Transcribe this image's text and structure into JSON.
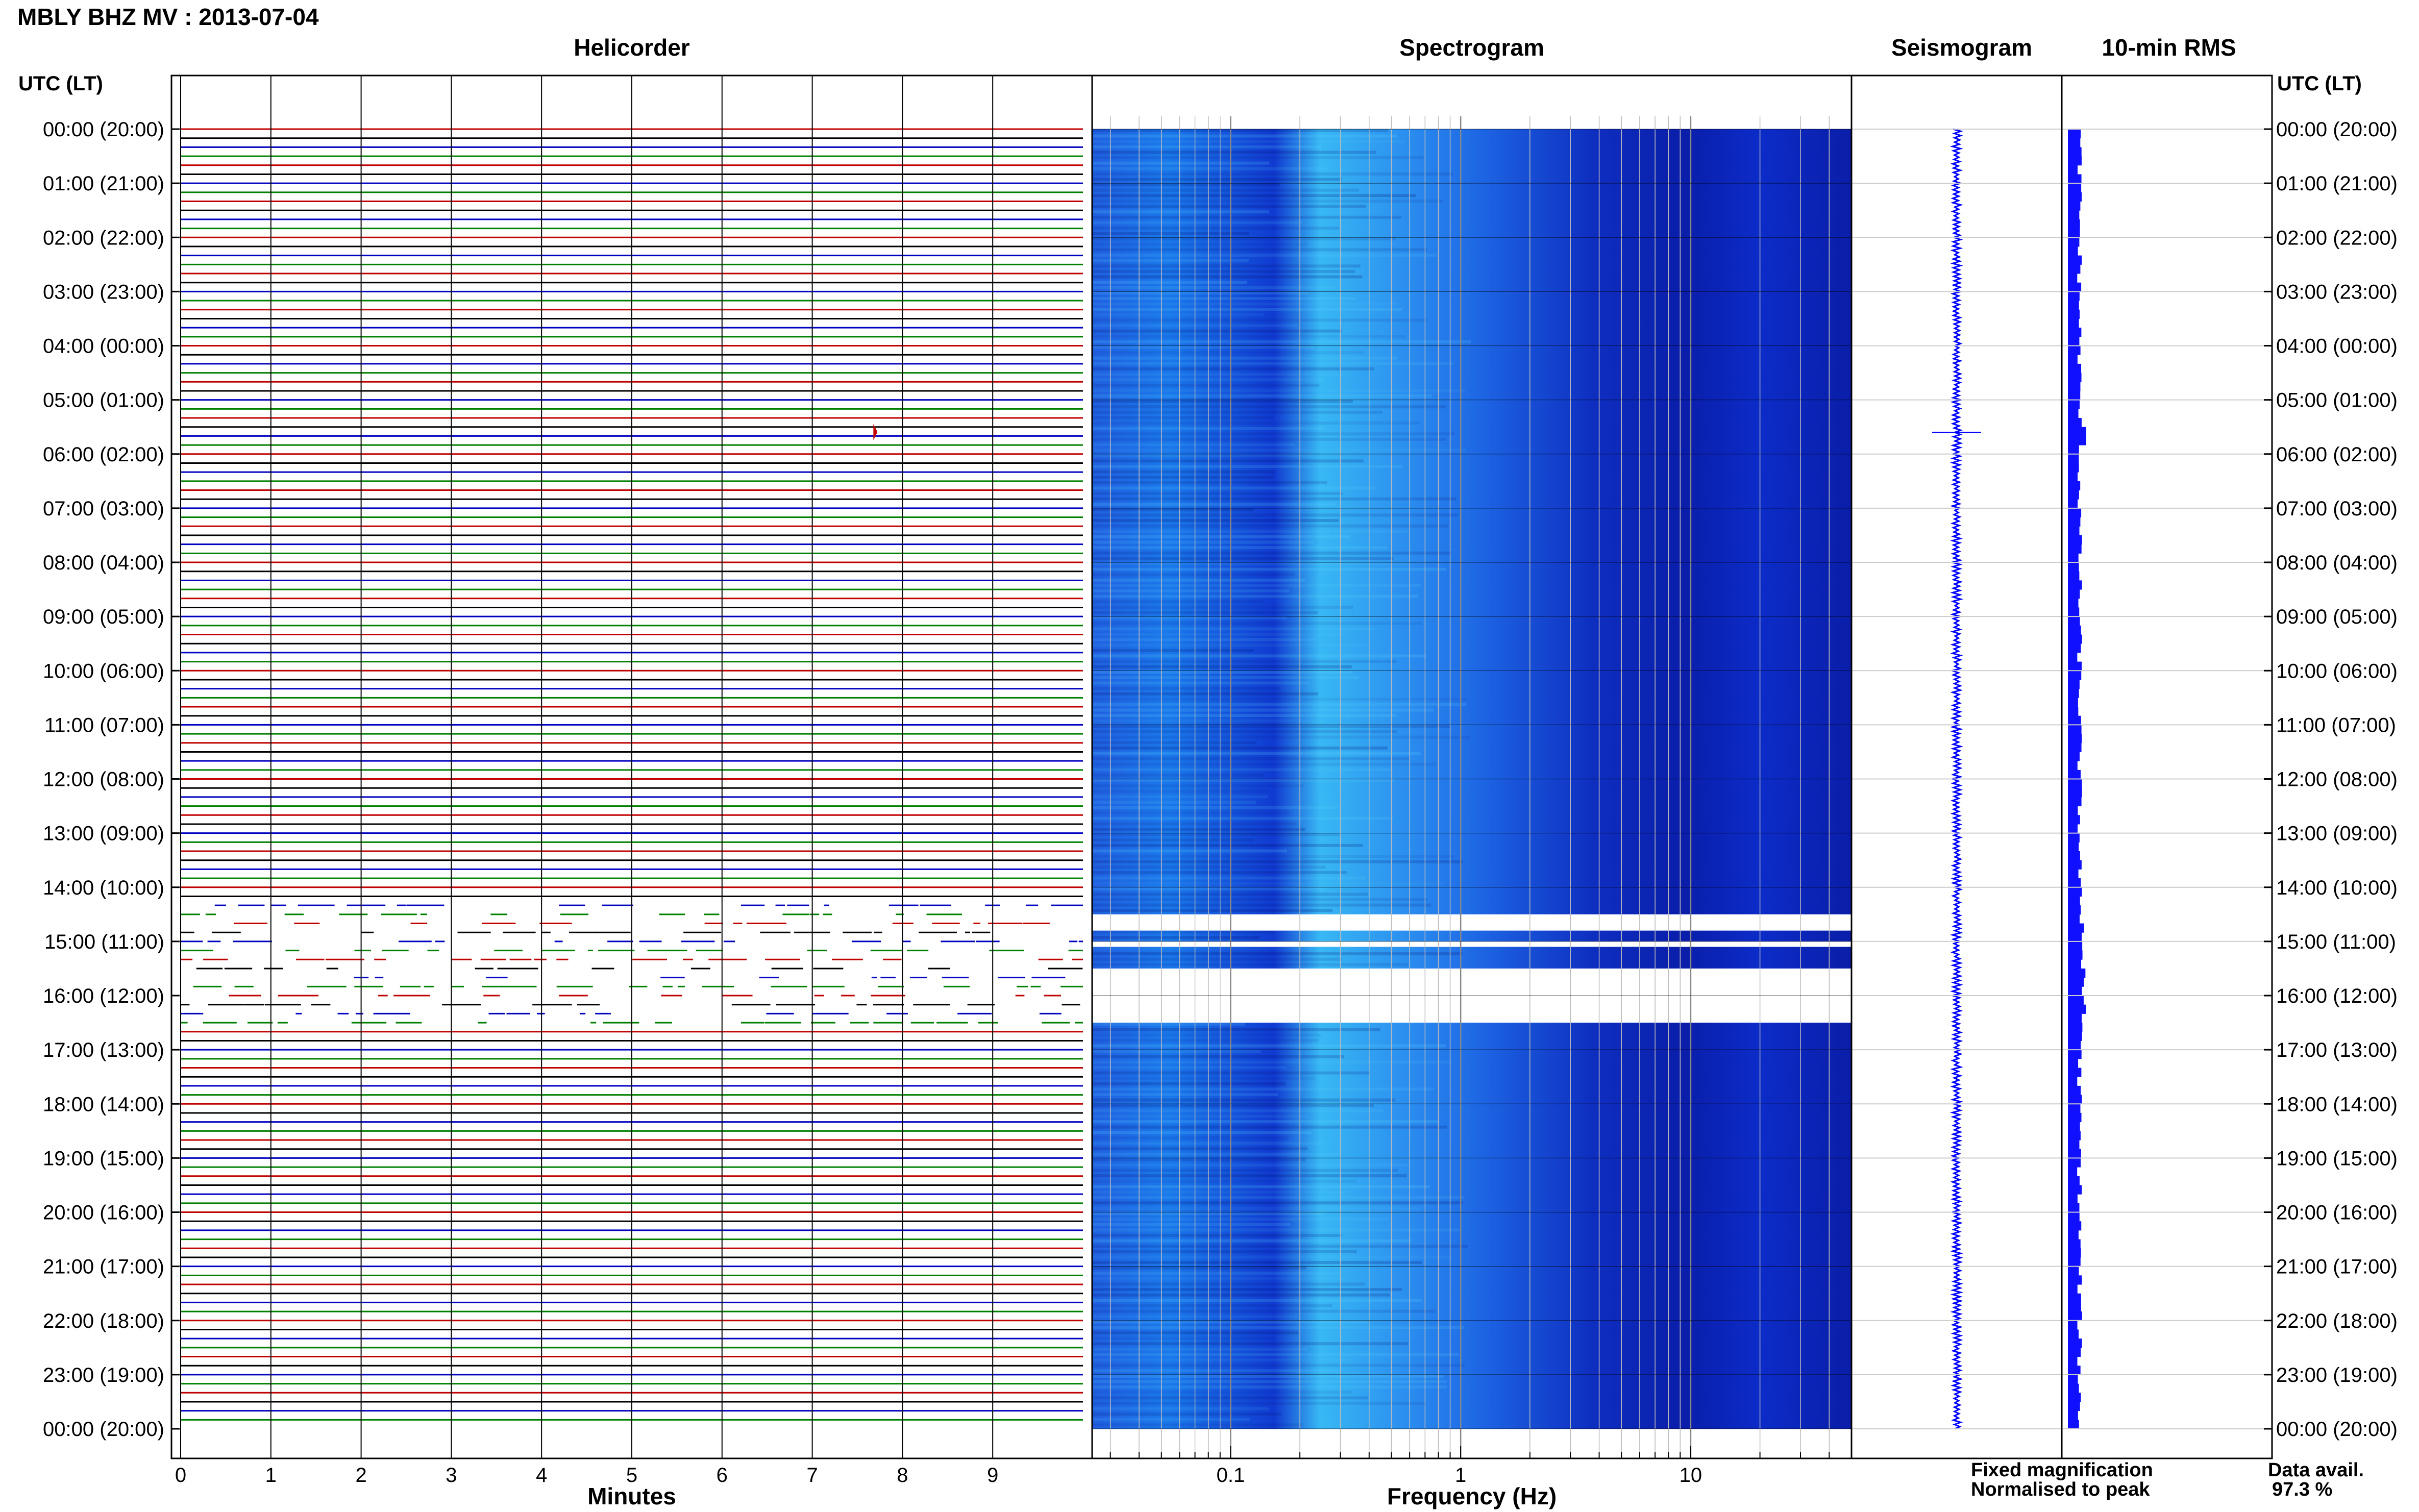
{
  "header": {
    "title": "MBLY BHZ MV : 2013-07-04"
  },
  "panels": {
    "helicorder": "Helicorder",
    "spectrogram": "Spectrogram",
    "seismogram": "Seismogram",
    "rms": "10-min RMS"
  },
  "time_axis": {
    "label_left": "UTC (LT)",
    "label_right": "UTC (LT)",
    "ticks": [
      "00:00 (20:00)",
      "01:00 (21:00)",
      "02:00 (22:00)",
      "03:00 (23:00)",
      "04:00 (00:00)",
      "05:00 (01:00)",
      "06:00 (02:00)",
      "07:00 (03:00)",
      "08:00 (04:00)",
      "09:00 (05:00)",
      "10:00 (06:00)",
      "11:00 (07:00)",
      "12:00 (08:00)",
      "13:00 (09:00)",
      "14:00 (10:00)",
      "15:00 (11:00)",
      "16:00 (12:00)",
      "17:00 (13:00)",
      "18:00 (14:00)",
      "19:00 (15:00)",
      "20:00 (16:00)",
      "21:00 (17:00)",
      "22:00 (18:00)",
      "23:00 (19:00)",
      "00:00 (20:00)"
    ]
  },
  "chart_data": [
    {
      "type": "line",
      "name": "helicorder",
      "title": "Helicorder",
      "xlabel": "Minutes",
      "x_ticks": [
        0,
        1,
        2,
        3,
        4,
        5,
        6,
        7,
        8,
        9
      ],
      "xlim": [
        0,
        10
      ],
      "trace_interval_minutes": 10,
      "trace_colors": [
        "#c00000",
        "#000000",
        "#0000c0",
        "#008000"
      ],
      "gap_utc_hours": [
        14.2,
        16.5
      ],
      "event_utc_hour": 5.5,
      "event_minute": 7.7
    },
    {
      "type": "heatmap",
      "name": "spectrogram",
      "title": "Spectrogram",
      "xlabel": "Frequency (Hz)",
      "x_scale": "log",
      "xlim": [
        0.025,
        50
      ],
      "x_tick_labels": [
        "0.1",
        "1",
        "10"
      ],
      "x_ticks": [
        0.1,
        1,
        10
      ],
      "gaps_utc_hours": [
        [
          14.5,
          14.8
        ],
        [
          15.0,
          15.1
        ],
        [
          15.5,
          16.5
        ]
      ],
      "colormap": [
        "#0a1aa0",
        "#1040e0",
        "#2a7af0",
        "#40c0f8"
      ]
    },
    {
      "type": "line",
      "name": "seismogram",
      "title": "Seismogram",
      "spike_utc_hour": 5.6
    },
    {
      "type": "area",
      "name": "rms",
      "title": "10-min RMS",
      "interval_minutes": 10
    }
  ],
  "legend": {
    "fixed": "Fixed magnification",
    "normalised": "Normalised to peak",
    "fixed_color": "#0000ff",
    "normalised_color": "#ff0000"
  },
  "data_avail": {
    "label": "Data avail.",
    "value": "97.3 %"
  }
}
